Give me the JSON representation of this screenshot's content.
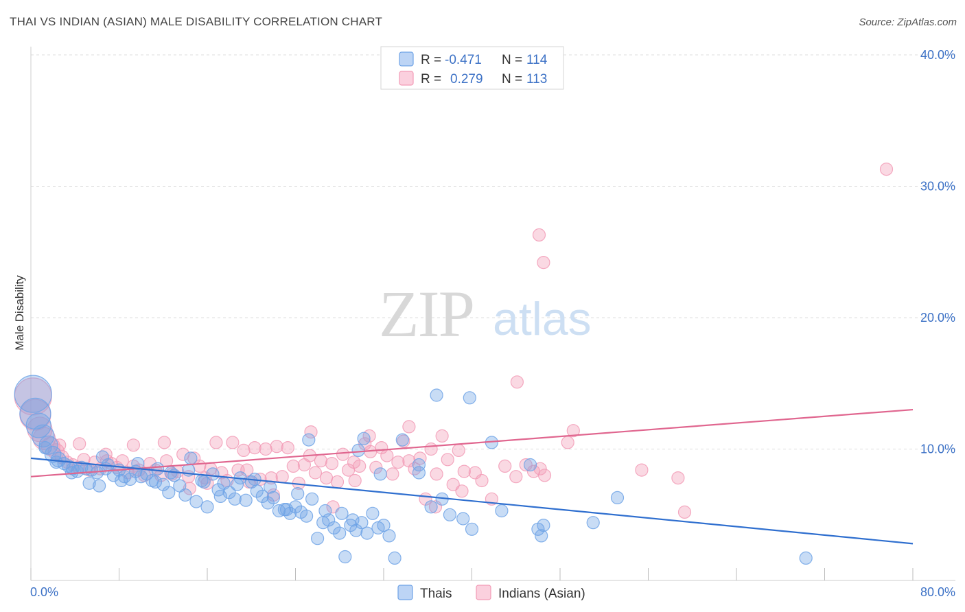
{
  "title": "THAI VS INDIAN (ASIAN) MALE DISABILITY CORRELATION CHART",
  "source": "Source: ZipAtlas.com",
  "watermark": {
    "zip": "ZIP",
    "atlas": "atlas"
  },
  "colors": {
    "thais": "#6fa3e6",
    "thais_line": "#2f6fcf",
    "indians": "#f29bb6",
    "indians_line": "#e0668f",
    "grid": "#dddddd",
    "tick_text": "#3d72c6"
  },
  "legend": {
    "thais": {
      "r_label": "R =",
      "r_value": "-0.471",
      "n_label": "N =",
      "n_value": "114"
    },
    "indians": {
      "r_label": "R =",
      "r_value": "0.279",
      "n_label": "N =",
      "n_value": "113"
    }
  },
  "chart_data": {
    "type": "scatter",
    "title": "THAI VS INDIAN (ASIAN) MALE DISABILITY CORRELATION CHART",
    "xlabel": "",
    "ylabel": "Male Disability",
    "xlim": [
      0,
      80
    ],
    "ylim": [
      0,
      40
    ],
    "x_tick_labels": {
      "left": "0.0%",
      "right": "80.0%"
    },
    "y_ticks": [
      {
        "value": 10,
        "label": "10.0%"
      },
      {
        "value": 20,
        "label": "20.0%"
      },
      {
        "value": 30,
        "label": "30.0%"
      },
      {
        "value": 40,
        "label": "40.0%"
      }
    ],
    "series": [
      {
        "name": "Thais",
        "trend": {
          "x": [
            0,
            80
          ],
          "y": [
            9.3,
            2.8
          ]
        },
        "points": [
          [
            0.2,
            14.2,
            3
          ],
          [
            0.4,
            12.7,
            2.5
          ],
          [
            0.7,
            11.8,
            2
          ],
          [
            1.1,
            11.0,
            1.8
          ],
          [
            1.6,
            10.3,
            1.5
          ],
          [
            2.0,
            9.6,
            1.3
          ],
          [
            2.5,
            9.2,
            1.2
          ],
          [
            3.0,
            8.9,
            1
          ],
          [
            3.4,
            8.7,
            1
          ],
          [
            3.8,
            8.5,
            1
          ],
          [
            4.2,
            8.3,
            1
          ],
          [
            4.6,
            8.6,
            1
          ],
          [
            5.0,
            8.5,
            1
          ],
          [
            5.5,
            8.4,
            1
          ],
          [
            6.0,
            8.2,
            1
          ],
          [
            6.5,
            9.4,
            1
          ],
          [
            7.0,
            8.8,
            1
          ],
          [
            7.5,
            8.0,
            1
          ],
          [
            8.0,
            8.4,
            1
          ],
          [
            8.5,
            7.9,
            1
          ],
          [
            9.0,
            7.7,
            1
          ],
          [
            9.5,
            8.3,
            1
          ],
          [
            10.0,
            7.9,
            1
          ],
          [
            10.5,
            8.1,
            1
          ],
          [
            11.0,
            7.6,
            1
          ],
          [
            11.5,
            8.5,
            1
          ],
          [
            12.0,
            7.3,
            1
          ],
          [
            12.5,
            6.7,
            1
          ],
          [
            13.0,
            8.0,
            1
          ],
          [
            13.5,
            7.2,
            1
          ],
          [
            14.0,
            6.5,
            1
          ],
          [
            14.5,
            9.3,
            1
          ],
          [
            15.0,
            6.0,
            1
          ],
          [
            15.5,
            7.6,
            1
          ],
          [
            16.0,
            5.6,
            1
          ],
          [
            16.5,
            8.1,
            1
          ],
          [
            17.0,
            6.9,
            1
          ],
          [
            17.5,
            7.4,
            1
          ],
          [
            18.0,
            6.7,
            1
          ],
          [
            18.5,
            6.2,
            1
          ],
          [
            19.0,
            7.8,
            1
          ],
          [
            19.5,
            6.1,
            1
          ],
          [
            20.0,
            7.5,
            1
          ],
          [
            20.5,
            6.8,
            1
          ],
          [
            21.0,
            6.4,
            1
          ],
          [
            21.5,
            5.9,
            1
          ],
          [
            22.0,
            6.3,
            1
          ],
          [
            22.5,
            5.3,
            1
          ],
          [
            23.0,
            5.4,
            1
          ],
          [
            23.5,
            5.1,
            1
          ],
          [
            24.0,
            5.6,
            1
          ],
          [
            24.5,
            5.2,
            1
          ],
          [
            25.0,
            4.9,
            1
          ],
          [
            25.5,
            6.2,
            1
          ],
          [
            26.0,
            3.2,
            1
          ],
          [
            26.5,
            4.4,
            1
          ],
          [
            27.0,
            4.6,
            1
          ],
          [
            27.5,
            4.0,
            1
          ],
          [
            28.0,
            3.6,
            1
          ],
          [
            28.5,
            1.8,
            1
          ],
          [
            29.0,
            4.2,
            1
          ],
          [
            29.5,
            3.8,
            1
          ],
          [
            30.0,
            4.4,
            1
          ],
          [
            30.5,
            3.6,
            1
          ],
          [
            31.0,
            5.1,
            1
          ],
          [
            31.5,
            4.0,
            1
          ],
          [
            32.0,
            4.2,
            1
          ],
          [
            32.5,
            3.4,
            1
          ],
          [
            33.0,
            1.7,
            1
          ],
          [
            1.3,
            10.1,
            1
          ],
          [
            2.3,
            9.0,
            1
          ],
          [
            3.7,
            8.2,
            1
          ],
          [
            5.3,
            7.4,
            1
          ],
          [
            6.8,
            8.5,
            1
          ],
          [
            9.7,
            8.9,
            1
          ],
          [
            11.3,
            7.5,
            1
          ],
          [
            12.7,
            8.2,
            1
          ],
          [
            14.3,
            8.4,
            1
          ],
          [
            15.7,
            7.5,
            1
          ],
          [
            17.2,
            6.4,
            1
          ],
          [
            18.7,
            7.3,
            1
          ],
          [
            20.3,
            7.7,
            1
          ],
          [
            21.7,
            7.1,
            1
          ],
          [
            23.2,
            5.4,
            1
          ],
          [
            24.2,
            6.6,
            1
          ],
          [
            25.2,
            10.7,
            1
          ],
          [
            26.7,
            5.3,
            1
          ],
          [
            28.2,
            5.1,
            1
          ],
          [
            29.2,
            4.6,
            1
          ],
          [
            29.7,
            9.9,
            1
          ],
          [
            30.2,
            10.8,
            1
          ],
          [
            31.7,
            8.1,
            1
          ],
          [
            33.7,
            10.7,
            1
          ],
          [
            35.2,
            8.2,
            1
          ],
          [
            36.3,
            5.6,
            1
          ],
          [
            37.3,
            6.2,
            1
          ],
          [
            38.0,
            5.0,
            1
          ],
          [
            39.2,
            4.7,
            1
          ],
          [
            40.0,
            3.9,
            1
          ],
          [
            36.8,
            14.1,
            1
          ],
          [
            39.8,
            13.9,
            1
          ],
          [
            41.8,
            10.5,
            1
          ],
          [
            42.7,
            5.3,
            1
          ],
          [
            45.3,
            8.8,
            1
          ],
          [
            46.0,
            3.9,
            1
          ],
          [
            46.3,
            3.4,
            1
          ],
          [
            46.5,
            4.2,
            1
          ],
          [
            51.0,
            4.4,
            1
          ],
          [
            53.2,
            6.3,
            1
          ],
          [
            70.3,
            1.7,
            1
          ],
          [
            35.2,
            8.8,
            1
          ],
          [
            6.2,
            7.2,
            1
          ],
          [
            8.2,
            7.6,
            1
          ]
        ]
      },
      {
        "name": "Indians (Asian)",
        "trend": {
          "x": [
            0,
            80
          ],
          "y": [
            7.9,
            13.0
          ]
        },
        "points": [
          [
            0.2,
            14.0,
            3
          ],
          [
            0.4,
            12.6,
            2.5
          ],
          [
            0.8,
            11.5,
            2
          ],
          [
            1.2,
            10.8,
            1.8
          ],
          [
            1.8,
            10.2,
            1.5
          ],
          [
            2.3,
            9.8,
            1.3
          ],
          [
            2.8,
            9.4,
            1.1
          ],
          [
            3.3,
            9.0,
            1
          ],
          [
            3.8,
            8.8,
            1
          ],
          [
            4.3,
            8.6,
            1
          ],
          [
            4.8,
            9.2,
            1
          ],
          [
            5.3,
            8.4,
            1
          ],
          [
            5.8,
            9.0,
            1
          ],
          [
            6.3,
            8.5,
            1
          ],
          [
            6.8,
            9.6,
            1
          ],
          [
            7.3,
            8.9,
            1
          ],
          [
            7.8,
            8.6,
            1
          ],
          [
            8.3,
            9.1,
            1
          ],
          [
            8.8,
            8.2,
            1
          ],
          [
            9.3,
            8.7,
            1
          ],
          [
            9.8,
            8.4,
            1
          ],
          [
            10.3,
            8.0,
            1
          ],
          [
            10.8,
            8.9,
            1
          ],
          [
            11.3,
            8.4,
            1
          ],
          [
            11.8,
            8.0,
            1
          ],
          [
            12.3,
            9.1,
            1
          ],
          [
            12.8,
            8.1,
            1
          ],
          [
            13.3,
            8.3,
            1
          ],
          [
            13.8,
            9.6,
            1
          ],
          [
            14.3,
            7.9,
            1
          ],
          [
            14.8,
            9.3,
            1
          ],
          [
            15.3,
            8.7,
            1
          ],
          [
            15.8,
            7.8,
            1
          ],
          [
            16.3,
            8.5,
            1
          ],
          [
            16.8,
            10.5,
            1
          ],
          [
            17.3,
            8.2,
            1
          ],
          [
            17.8,
            7.6,
            1
          ],
          [
            18.3,
            10.5,
            1
          ],
          [
            18.8,
            8.4,
            1
          ],
          [
            19.3,
            9.9,
            1
          ],
          [
            19.8,
            7.5,
            1
          ],
          [
            20.3,
            10.1,
            1
          ],
          [
            20.8,
            7.7,
            1
          ],
          [
            21.3,
            10.0,
            1
          ],
          [
            21.8,
            7.8,
            1
          ],
          [
            22.3,
            10.2,
            1
          ],
          [
            22.8,
            7.9,
            1
          ],
          [
            23.3,
            10.1,
            1
          ],
          [
            23.8,
            8.7,
            1
          ],
          [
            24.3,
            7.4,
            1
          ],
          [
            24.8,
            8.8,
            1
          ],
          [
            25.3,
            9.5,
            1
          ],
          [
            25.8,
            8.2,
            1
          ],
          [
            26.3,
            9.1,
            1
          ],
          [
            26.8,
            7.8,
            1
          ],
          [
            27.3,
            8.9,
            1
          ],
          [
            27.8,
            7.5,
            1
          ],
          [
            28.3,
            9.6,
            1
          ],
          [
            28.8,
            8.4,
            1
          ],
          [
            29.3,
            9.0,
            1
          ],
          [
            29.8,
            8.7,
            1
          ],
          [
            30.3,
            10.4,
            1
          ],
          [
            30.8,
            9.8,
            1
          ],
          [
            31.3,
            8.6,
            1
          ],
          [
            31.8,
            10.1,
            1
          ],
          [
            32.3,
            9.5,
            1
          ],
          [
            32.8,
            8.1,
            1
          ],
          [
            33.3,
            9.0,
            1
          ],
          [
            33.8,
            10.6,
            1
          ],
          [
            34.3,
            9.1,
            1
          ],
          [
            34.8,
            8.5,
            1
          ],
          [
            35.3,
            9.3,
            1
          ],
          [
            35.8,
            6.2,
            1
          ],
          [
            36.3,
            10.0,
            1
          ],
          [
            36.8,
            8.1,
            1
          ],
          [
            37.3,
            11.0,
            1
          ],
          [
            37.8,
            9.2,
            1
          ],
          [
            38.3,
            7.3,
            1
          ],
          [
            38.8,
            9.9,
            1
          ],
          [
            39.3,
            8.3,
            1
          ],
          [
            2.6,
            10.3,
            1
          ],
          [
            4.4,
            10.4,
            1
          ],
          [
            6.9,
            9.1,
            1
          ],
          [
            9.3,
            10.3,
            1
          ],
          [
            12.1,
            10.5,
            1
          ],
          [
            14.4,
            7.0,
            1
          ],
          [
            16.0,
            7.4,
            1
          ],
          [
            19.6,
            8.4,
            1
          ],
          [
            22.0,
            6.5,
            1
          ],
          [
            25.4,
            11.3,
            1
          ],
          [
            27.4,
            5.6,
            1
          ],
          [
            29.4,
            7.6,
            1
          ],
          [
            30.7,
            11.0,
            1
          ],
          [
            34.3,
            11.7,
            1
          ],
          [
            36.7,
            5.6,
            1
          ],
          [
            39.1,
            6.8,
            1
          ],
          [
            40.3,
            8.2,
            1
          ],
          [
            40.9,
            7.6,
            1
          ],
          [
            41.8,
            6.2,
            1
          ],
          [
            43.0,
            8.7,
            1
          ],
          [
            44.0,
            7.9,
            1
          ],
          [
            44.9,
            8.8,
            1
          ],
          [
            45.6,
            8.3,
            1
          ],
          [
            46.2,
            8.5,
            1
          ],
          [
            46.6,
            8.0,
            1
          ],
          [
            48.7,
            10.5,
            1
          ],
          [
            49.2,
            11.4,
            1
          ],
          [
            55.4,
            8.4,
            1
          ],
          [
            58.7,
            7.8,
            1
          ],
          [
            59.3,
            5.2,
            1
          ],
          [
            44.1,
            15.1,
            1
          ],
          [
            46.1,
            26.3,
            1
          ],
          [
            46.5,
            24.2,
            1
          ],
          [
            77.6,
            31.3,
            1
          ]
        ]
      }
    ]
  },
  "bottom_legend": {
    "thais_label": "Thais",
    "indians_label": "Indians (Asian)"
  }
}
